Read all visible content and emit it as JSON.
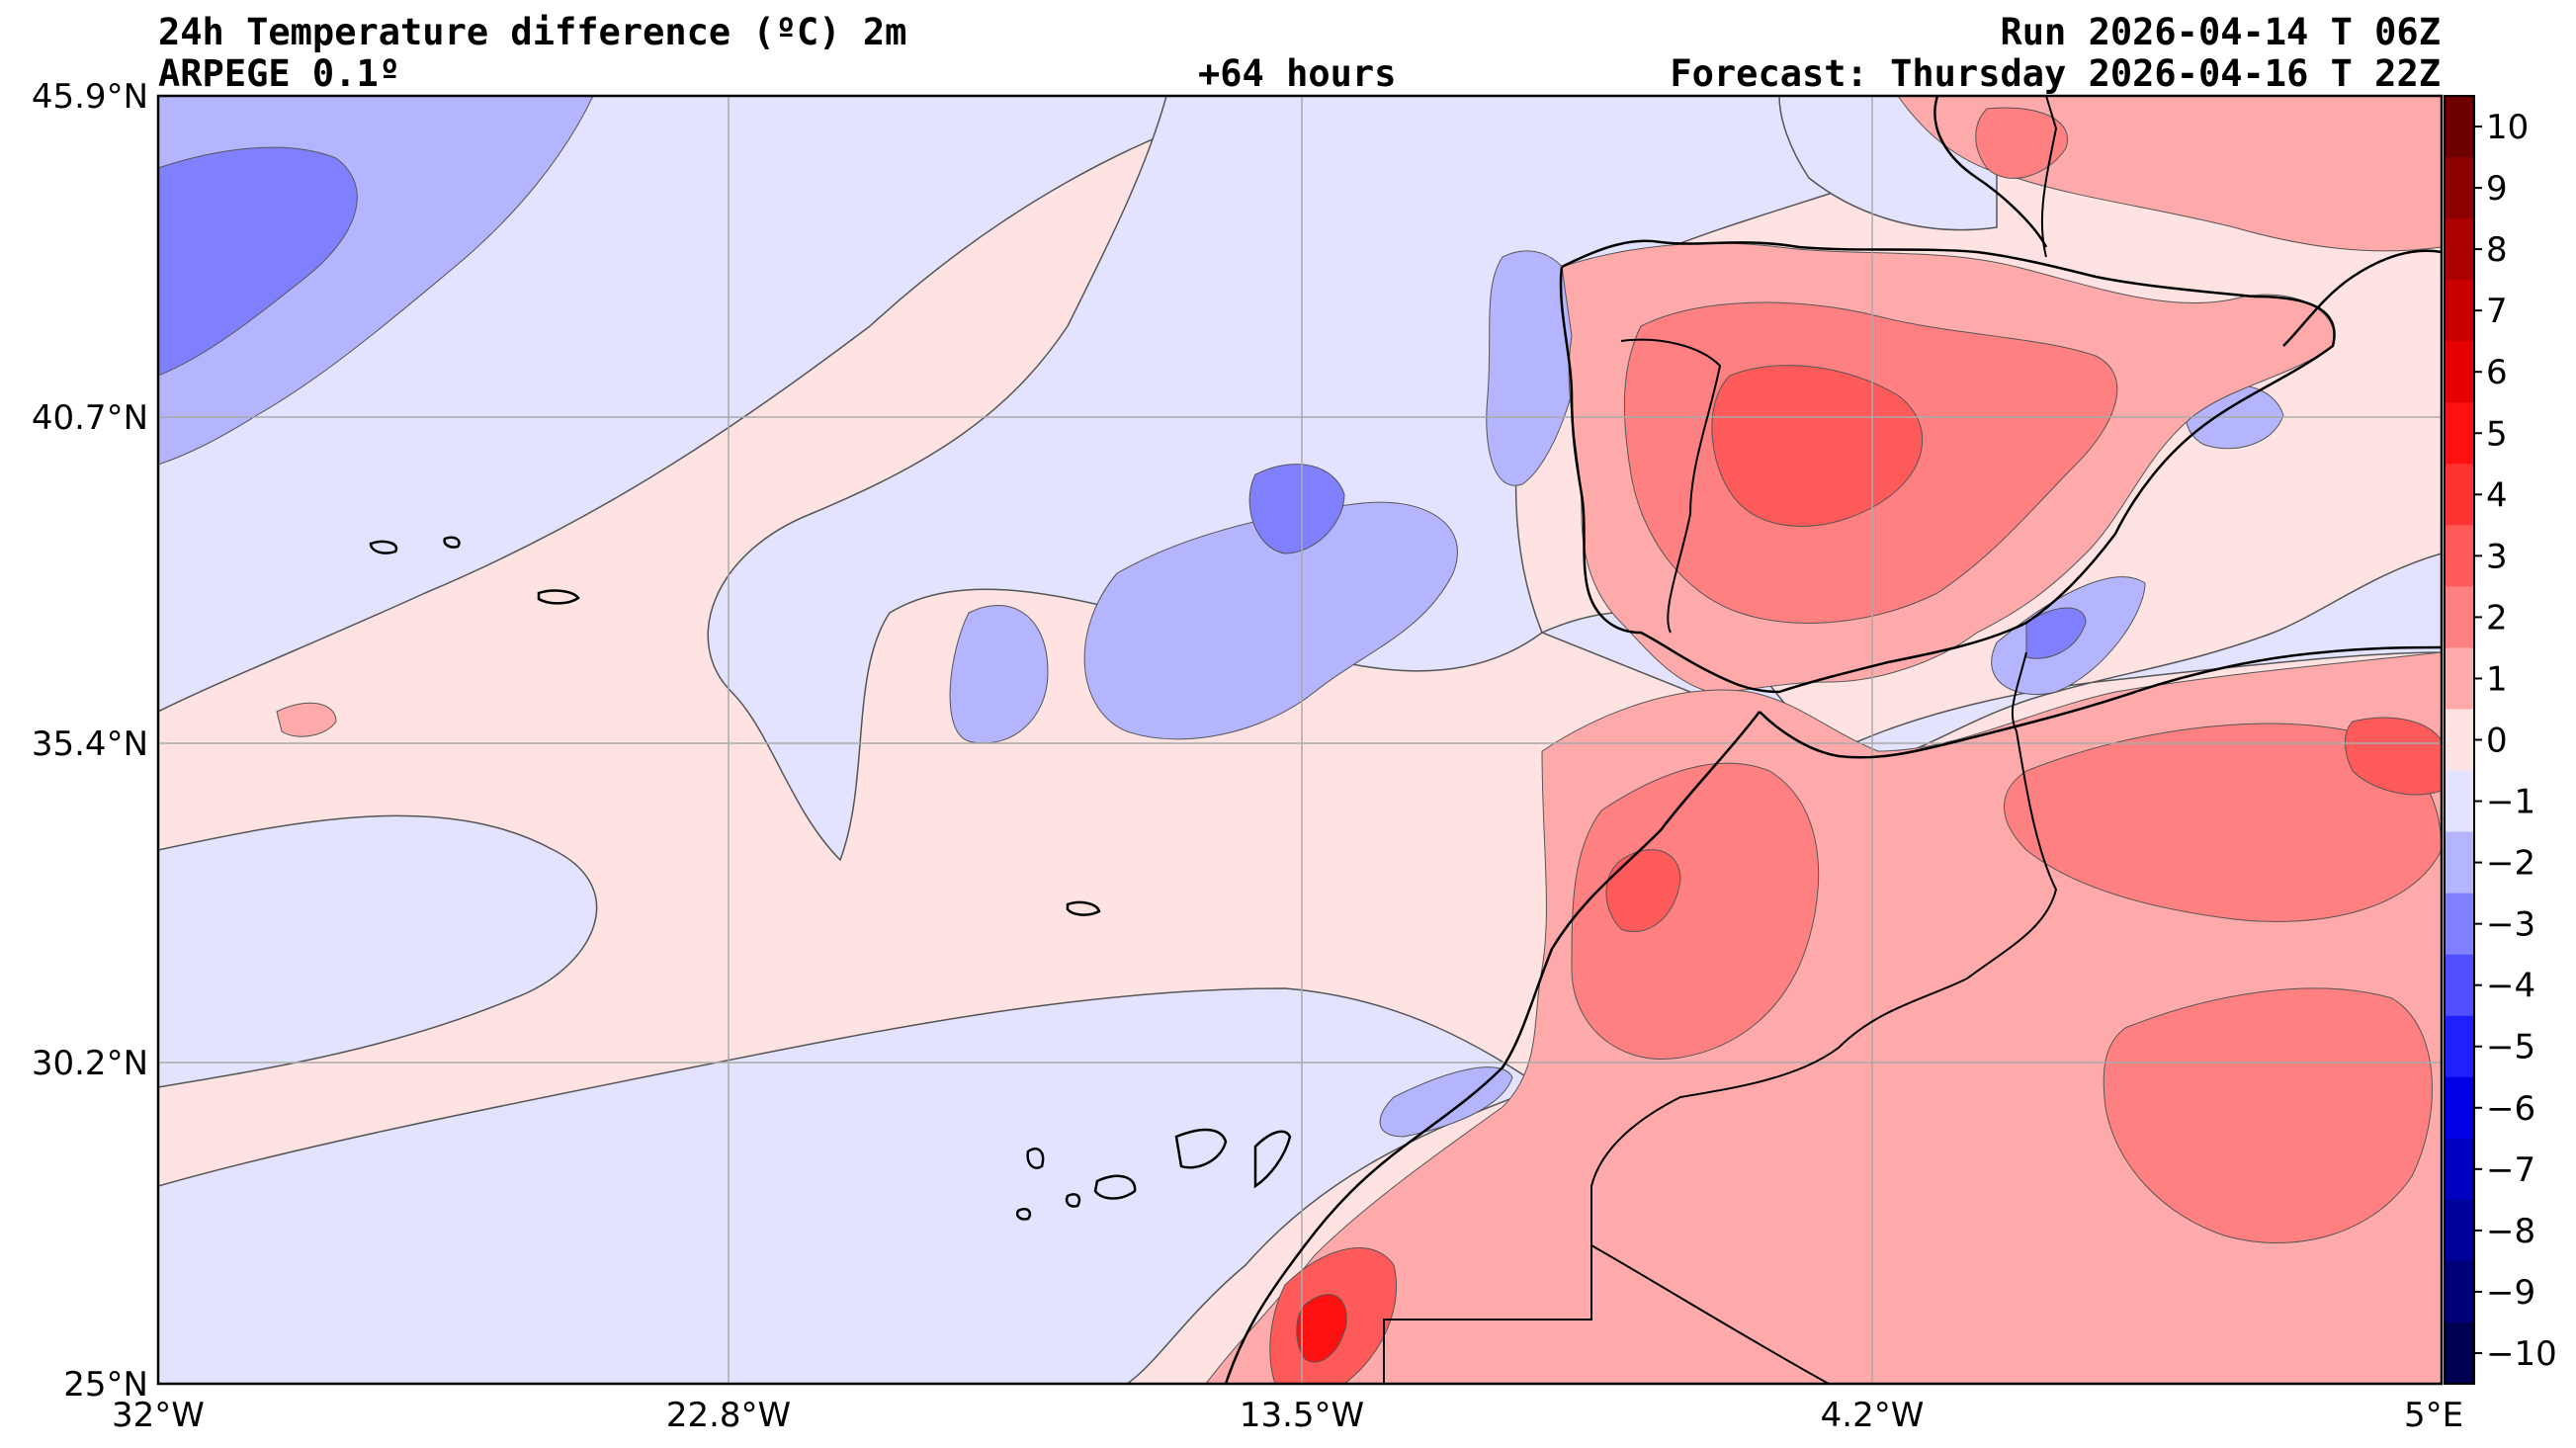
{
  "header": {
    "title": "24h Temperature difference (ºC) 2m",
    "model": "ARPEGE 0.1º",
    "lead_time": "+64 hours",
    "run": "Run 2026-04-14 T 06Z",
    "forecast": "Forecast: Thursday 2026-04-16 T 22Z"
  },
  "map": {
    "lat_ticks": [
      "45.9°N",
      "40.7°N",
      "35.4°N",
      "30.2°N",
      "25°N"
    ],
    "lon_ticks": [
      "32°W",
      "22.8°W",
      "13.5°W",
      "4.2°W",
      "5°E"
    ],
    "extent": {
      "lon_min": -32,
      "lon_max": 5,
      "lat_min": 25,
      "lat_max": 45.9
    },
    "grid": true
  },
  "colorbar": {
    "labels": [
      "10",
      "9",
      "8",
      "7",
      "6",
      "5",
      "4",
      "3",
      "2",
      "1",
      "0",
      "−1",
      "−2",
      "−3",
      "−4",
      "−5",
      "−6",
      "−7",
      "−8",
      "−9",
      "−10"
    ],
    "colors": [
      "#6e0000",
      "#8c0000",
      "#aa0000",
      "#c80000",
      "#e60000",
      "#ff1010",
      "#ff3232",
      "#ff5a5a",
      "#ff8080",
      "#ffaaaa",
      "#ffe3e3",
      "#e3e3ff",
      "#b4b4ff",
      "#8080ff",
      "#5050ff",
      "#2020ff",
      "#0000e6",
      "#0000c0",
      "#00009a",
      "#000078",
      "#000050"
    ]
  },
  "colors": {
    "warm_light": "#ffe3e3",
    "cool_light": "#e3e3ff"
  }
}
